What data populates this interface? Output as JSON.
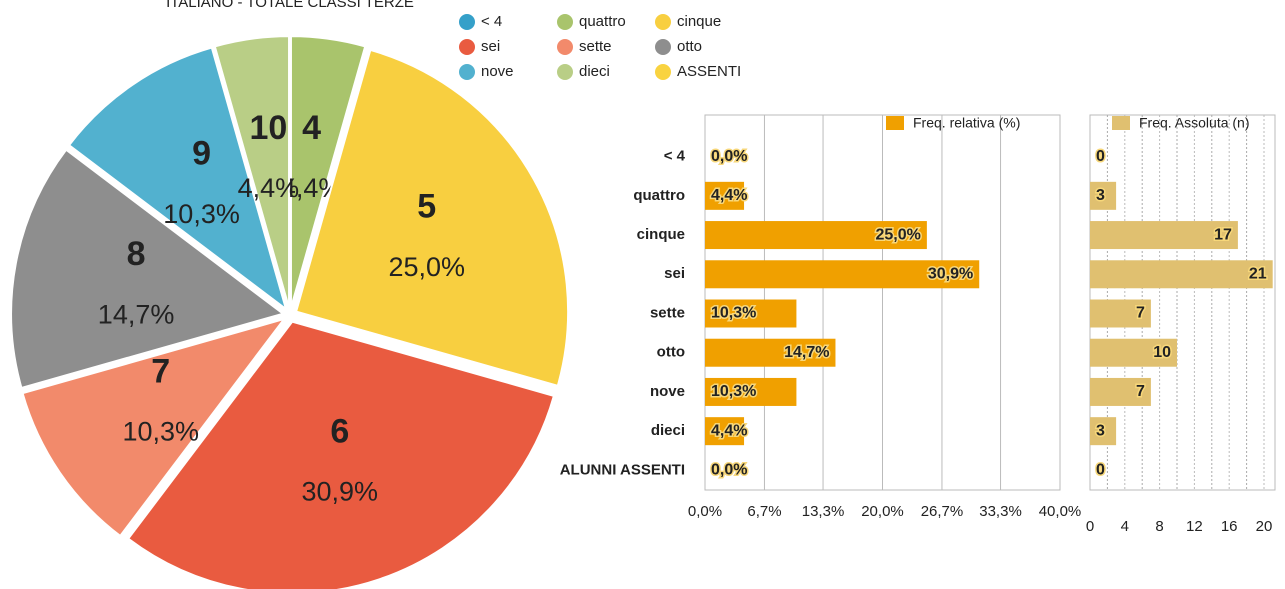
{
  "chart_data": [
    {
      "type": "pie",
      "title": "ITALIANO - TOTALE CLASSI TERZE",
      "categories": [
        "< 4",
        "quattro",
        "cinque",
        "sei",
        "sette",
        "otto",
        "nove",
        "dieci",
        "ASSENTI"
      ],
      "slice_labels": [
        null,
        "4",
        "5",
        "6",
        "7",
        "8",
        "9",
        "10",
        null
      ],
      "values": [
        0,
        4.4,
        25.0,
        30.9,
        10.3,
        14.7,
        10.3,
        4.4,
        0
      ],
      "value_labels": [
        null,
        "4,4%",
        "25,0%",
        "30,9%",
        "10,3%",
        "14,7%",
        "10,3%",
        "4,4%",
        null
      ],
      "colors": [
        "#35a0c9",
        "#a9c46c",
        "#f8cf40",
        "#e95b40",
        "#f28a6b",
        "#8e8e8e",
        "#52b1cf",
        "#b9ce86",
        "#f9d340"
      ]
    },
    {
      "type": "barh",
      "categories": [
        "< 4",
        "quattro",
        "cinque",
        "sei",
        "sette",
        "otto",
        "nove",
        "dieci",
        "ALUNNI ASSENTI"
      ],
      "series": [
        {
          "name": "Freq. relativa (%)",
          "color": "#f0a000",
          "values": [
            0,
            4.4,
            25.0,
            30.9,
            10.3,
            14.7,
            10.3,
            4.4,
            0
          ],
          "value_labels": [
            "0,0%",
            "4,4%",
            "25,0%",
            "30,9%",
            "10,3%",
            "14,7%",
            "10,3%",
            "4,4%",
            "0,0%"
          ]
        }
      ],
      "xlim": [
        0,
        40
      ],
      "xticks": [
        {
          "value": 0,
          "label": "0,0%"
        },
        {
          "value": 6.7,
          "label": "6,7%"
        },
        {
          "value": 13.3,
          "label": "13,3%"
        },
        {
          "value": 20,
          "label": "20,0%"
        },
        {
          "value": 26.7,
          "label": "26,7%"
        },
        {
          "value": 33.3,
          "label": "33,3%"
        },
        {
          "value": 40,
          "label": "40,0%"
        }
      ],
      "grid": true
    },
    {
      "type": "barh",
      "series": [
        {
          "name": "Freq. Assoluta (n)",
          "color": "#e0c070",
          "values": [
            0,
            3,
            17,
            21,
            7,
            10,
            7,
            3,
            0
          ]
        }
      ],
      "xlim": [
        0,
        20
      ],
      "xticks": [
        0,
        4,
        8,
        12,
        16,
        20
      ],
      "minor_xticks": [
        2,
        6,
        10,
        14,
        18
      ],
      "grid": true
    }
  ]
}
